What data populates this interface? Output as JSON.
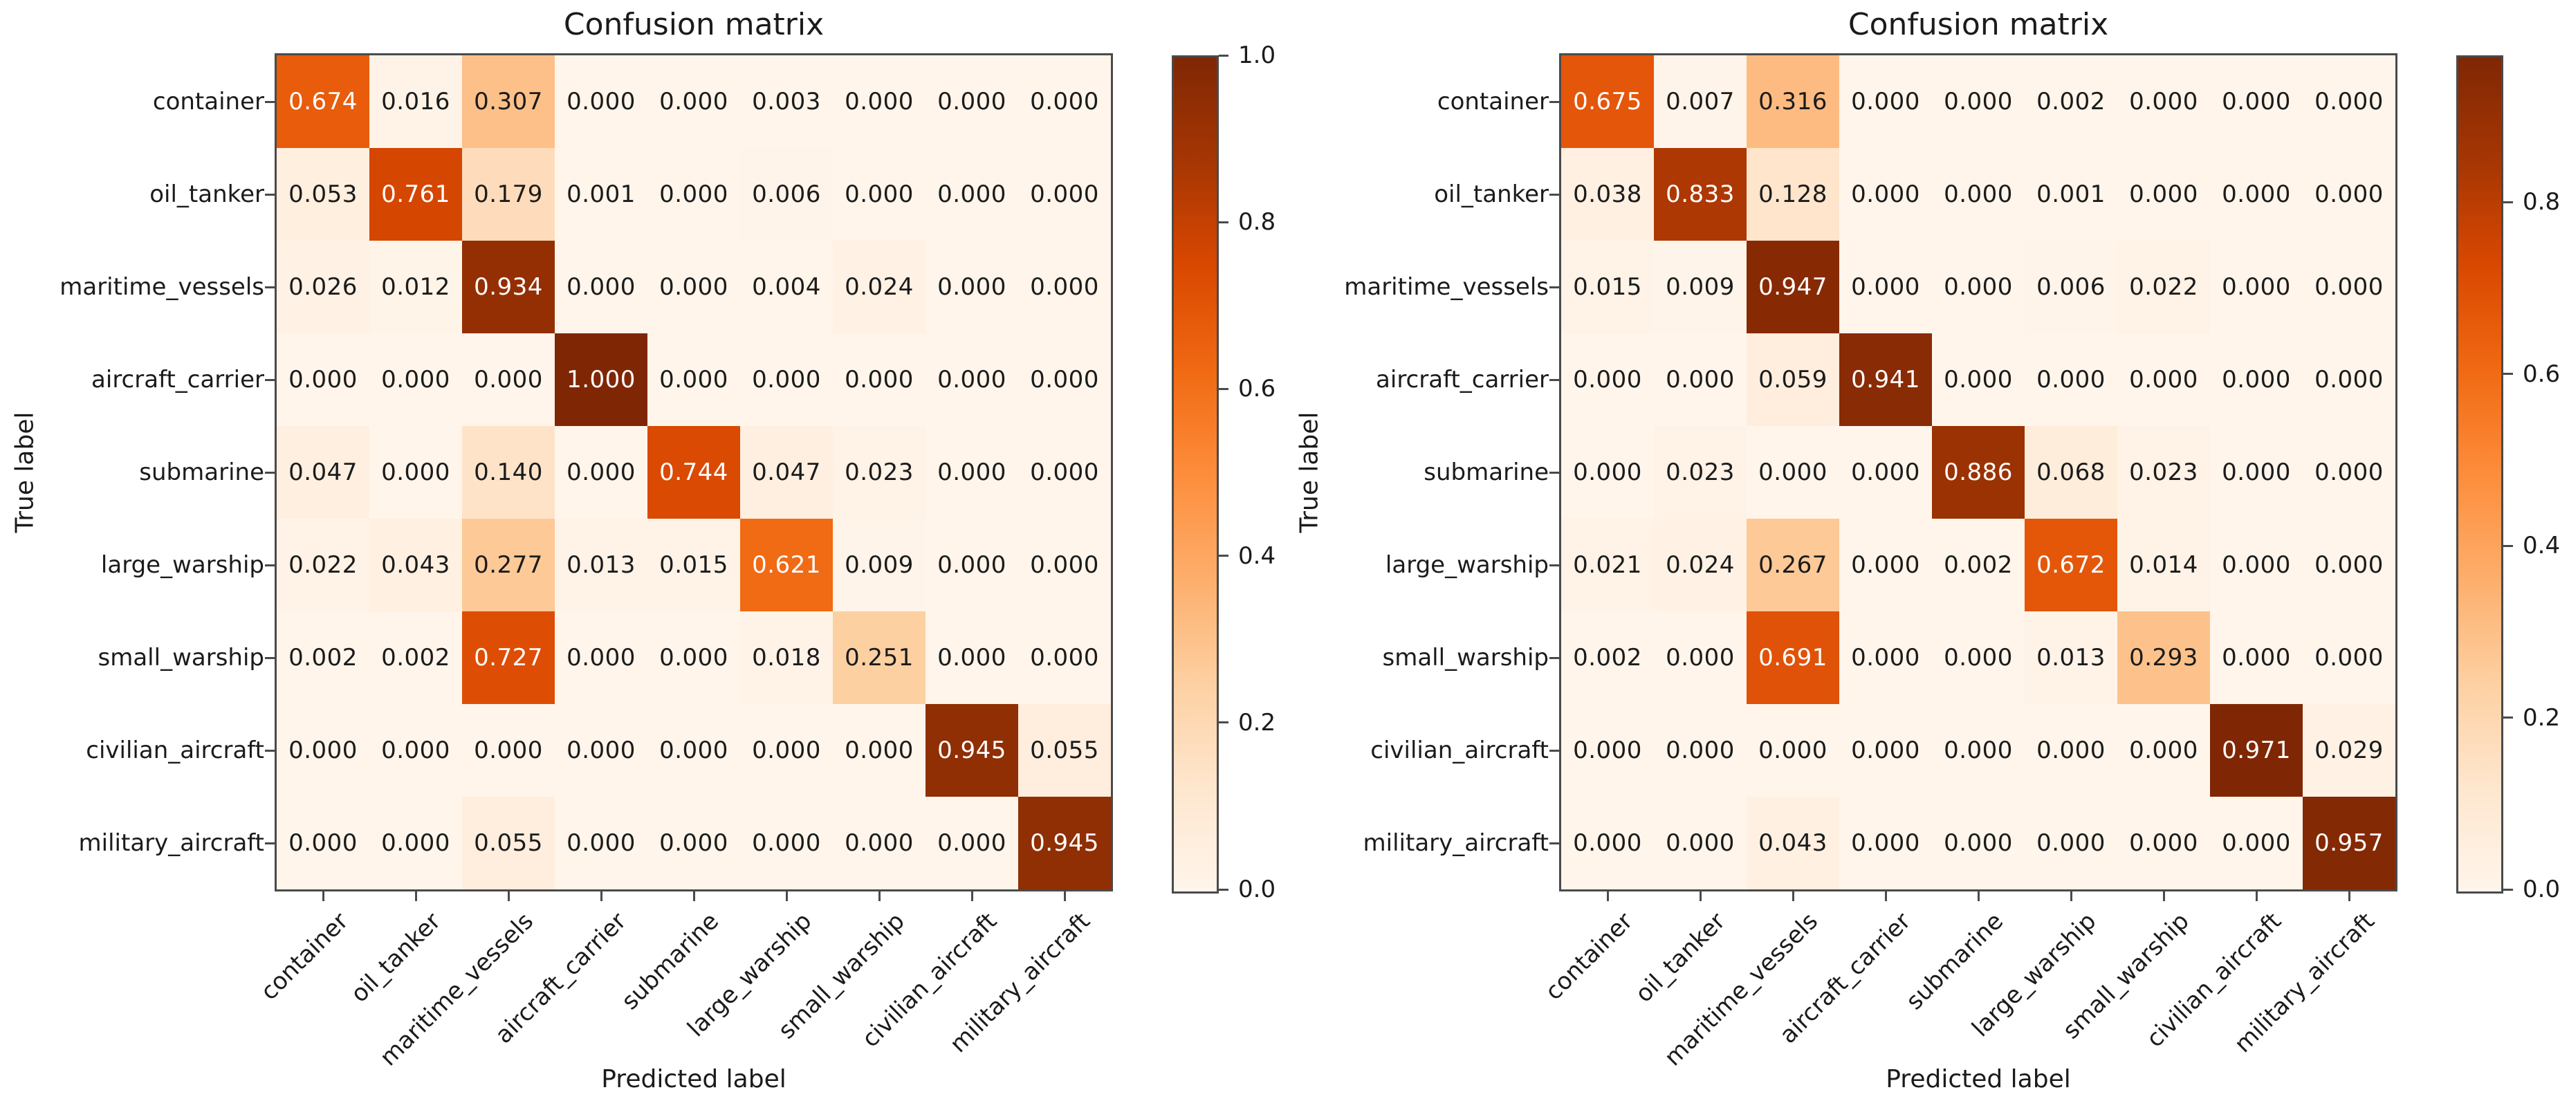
{
  "figure": {
    "background": "#ffffff",
    "spine_color": "#4a4a4a",
    "text_color": "#1b1b1b",
    "cell_text_light": "#ffffff",
    "cell_text_dark": "#1b1b1b",
    "colormap": {
      "name": "Oranges",
      "stops": [
        [
          0.0,
          "#fff5eb"
        ],
        [
          0.125,
          "#fee6ce"
        ],
        [
          0.25,
          "#fdd0a2"
        ],
        [
          0.375,
          "#fdae6b"
        ],
        [
          0.5,
          "#fd8d3c"
        ],
        [
          0.625,
          "#f16913"
        ],
        [
          0.75,
          "#d94801"
        ],
        [
          0.875,
          "#a63603"
        ],
        [
          1.0,
          "#7f2704"
        ]
      ]
    }
  },
  "chart_data": [
    {
      "type": "heatmap",
      "title": "Confusion matrix",
      "xlabel": "Predicted label",
      "ylabel": "True label",
      "categories": [
        "container",
        "oil_tanker",
        "maritime_vessels",
        "aircraft_carrier",
        "submarine",
        "large_warship",
        "small_warship",
        "civilian_aircraft",
        "military_aircraft"
      ],
      "value_format_decimals": 3,
      "vmin": 0.0,
      "vmax": 1.0,
      "colorbar_ticks": [
        0.0,
        0.2,
        0.4,
        0.6,
        0.8,
        1.0
      ],
      "matrix": [
        [
          0.674,
          0.016,
          0.307,
          0.0,
          0.0,
          0.003,
          0.0,
          0.0,
          0.0
        ],
        [
          0.053,
          0.761,
          0.179,
          0.001,
          0.0,
          0.006,
          0.0,
          0.0,
          0.0
        ],
        [
          0.026,
          0.012,
          0.934,
          0.0,
          0.0,
          0.004,
          0.024,
          0.0,
          0.0
        ],
        [
          0.0,
          0.0,
          0.0,
          1.0,
          0.0,
          0.0,
          0.0,
          0.0,
          0.0
        ],
        [
          0.047,
          0.0,
          0.14,
          0.0,
          0.744,
          0.047,
          0.023,
          0.0,
          0.0
        ],
        [
          0.022,
          0.043,
          0.277,
          0.013,
          0.015,
          0.621,
          0.009,
          0.0,
          0.0
        ],
        [
          0.002,
          0.002,
          0.727,
          0.0,
          0.0,
          0.018,
          0.251,
          0.0,
          0.0
        ],
        [
          0.0,
          0.0,
          0.0,
          0.0,
          0.0,
          0.0,
          0.0,
          0.945,
          0.055
        ],
        [
          0.0,
          0.0,
          0.055,
          0.0,
          0.0,
          0.0,
          0.0,
          0.0,
          0.945
        ]
      ]
    },
    {
      "type": "heatmap",
      "title": "Confusion matrix",
      "xlabel": "Predicted label",
      "ylabel": "True label",
      "categories": [
        "container",
        "oil_tanker",
        "maritime_vessels",
        "aircraft_carrier",
        "submarine",
        "large_warship",
        "small_warship",
        "civilian_aircraft",
        "military_aircraft"
      ],
      "value_format_decimals": 3,
      "vmin": 0.0,
      "vmax": 0.971,
      "colorbar_ticks": [
        0.0,
        0.2,
        0.4,
        0.6,
        0.8
      ],
      "matrix": [
        [
          0.675,
          0.007,
          0.316,
          0.0,
          0.0,
          0.002,
          0.0,
          0.0,
          0.0
        ],
        [
          0.038,
          0.833,
          0.128,
          0.0,
          0.0,
          0.001,
          0.0,
          0.0,
          0.0
        ],
        [
          0.015,
          0.009,
          0.947,
          0.0,
          0.0,
          0.006,
          0.022,
          0.0,
          0.0
        ],
        [
          0.0,
          0.0,
          0.059,
          0.941,
          0.0,
          0.0,
          0.0,
          0.0,
          0.0
        ],
        [
          0.0,
          0.023,
          0.0,
          0.0,
          0.886,
          0.068,
          0.023,
          0.0,
          0.0
        ],
        [
          0.021,
          0.024,
          0.267,
          0.0,
          0.002,
          0.672,
          0.014,
          0.0,
          0.0
        ],
        [
          0.002,
          0.0,
          0.691,
          0.0,
          0.0,
          0.013,
          0.293,
          0.0,
          0.0
        ],
        [
          0.0,
          0.0,
          0.0,
          0.0,
          0.0,
          0.0,
          0.0,
          0.971,
          0.029
        ],
        [
          0.0,
          0.0,
          0.043,
          0.0,
          0.0,
          0.0,
          0.0,
          0.0,
          0.957
        ]
      ]
    }
  ]
}
